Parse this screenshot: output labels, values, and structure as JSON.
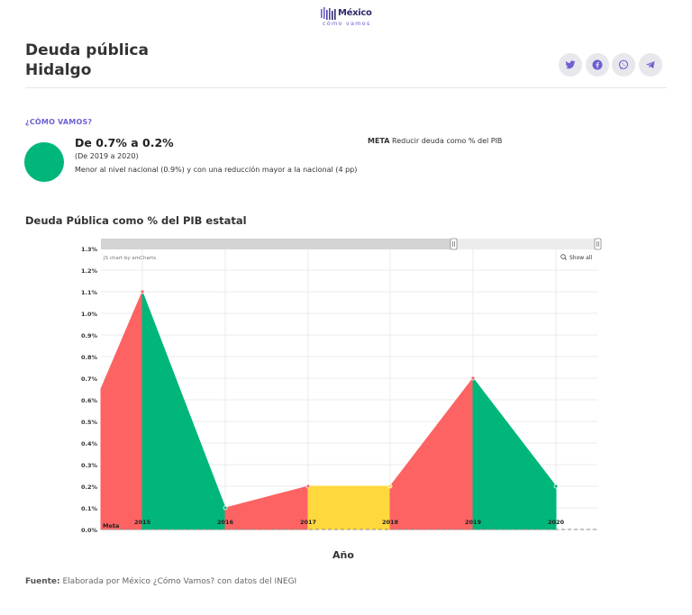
{
  "brand": {
    "name": "México",
    "tagline": "cómo vamos"
  },
  "page": {
    "title_line1": "Deuda pública",
    "title_line2": "Hidalgo"
  },
  "share_icons": [
    "twitter-icon",
    "facebook-icon",
    "whatsapp-icon",
    "telegram-icon"
  ],
  "summary": {
    "section_label": "¿CÓMO VAMOS?",
    "range_title": "De 0.7% a 0.2%",
    "period": "(De 2019 a 2020)",
    "description": "Menor al nivel nacional (0.9%) y con una reducción mayor a la nacional (4 pp)",
    "meta_label": "META",
    "meta_text": "Reducir deuda como % del PIB",
    "status_color": "#00b67a"
  },
  "chart_title": "Deuda Pública como % del PIB estatal",
  "chart_data": {
    "type": "area",
    "x": [
      "2015",
      "2016",
      "2017",
      "2018",
      "2019",
      "2020"
    ],
    "series": [
      {
        "name": "Meta",
        "values": [
          0,
          0,
          0,
          0,
          0,
          0
        ]
      }
    ],
    "values": [
      1.1,
      0.1,
      0.2,
      0.2,
      0.7,
      0.2
    ],
    "start_value": 0.65,
    "xlabel": "Año",
    "ylabel": "",
    "ylim": [
      0,
      1.3
    ],
    "yticks": [
      "0.0%",
      "0.1%",
      "0.2%",
      "0.3%",
      "0.4%",
      "0.5%",
      "0.6%",
      "0.7%",
      "0.8%",
      "0.9%",
      "1.0%",
      "1.1%",
      "1.2%",
      "1.3%"
    ],
    "credit": "JS chart by amCharts",
    "show_all_label": "Show all",
    "grid": true,
    "colors": {
      "increase": "#fd6363",
      "decrease": "#00b67a",
      "flat": "#ffd83d"
    }
  },
  "source": {
    "label": "Fuente:",
    "text": "Elaborada por México ¿Cómo Vamos? con datos del INEGI"
  }
}
